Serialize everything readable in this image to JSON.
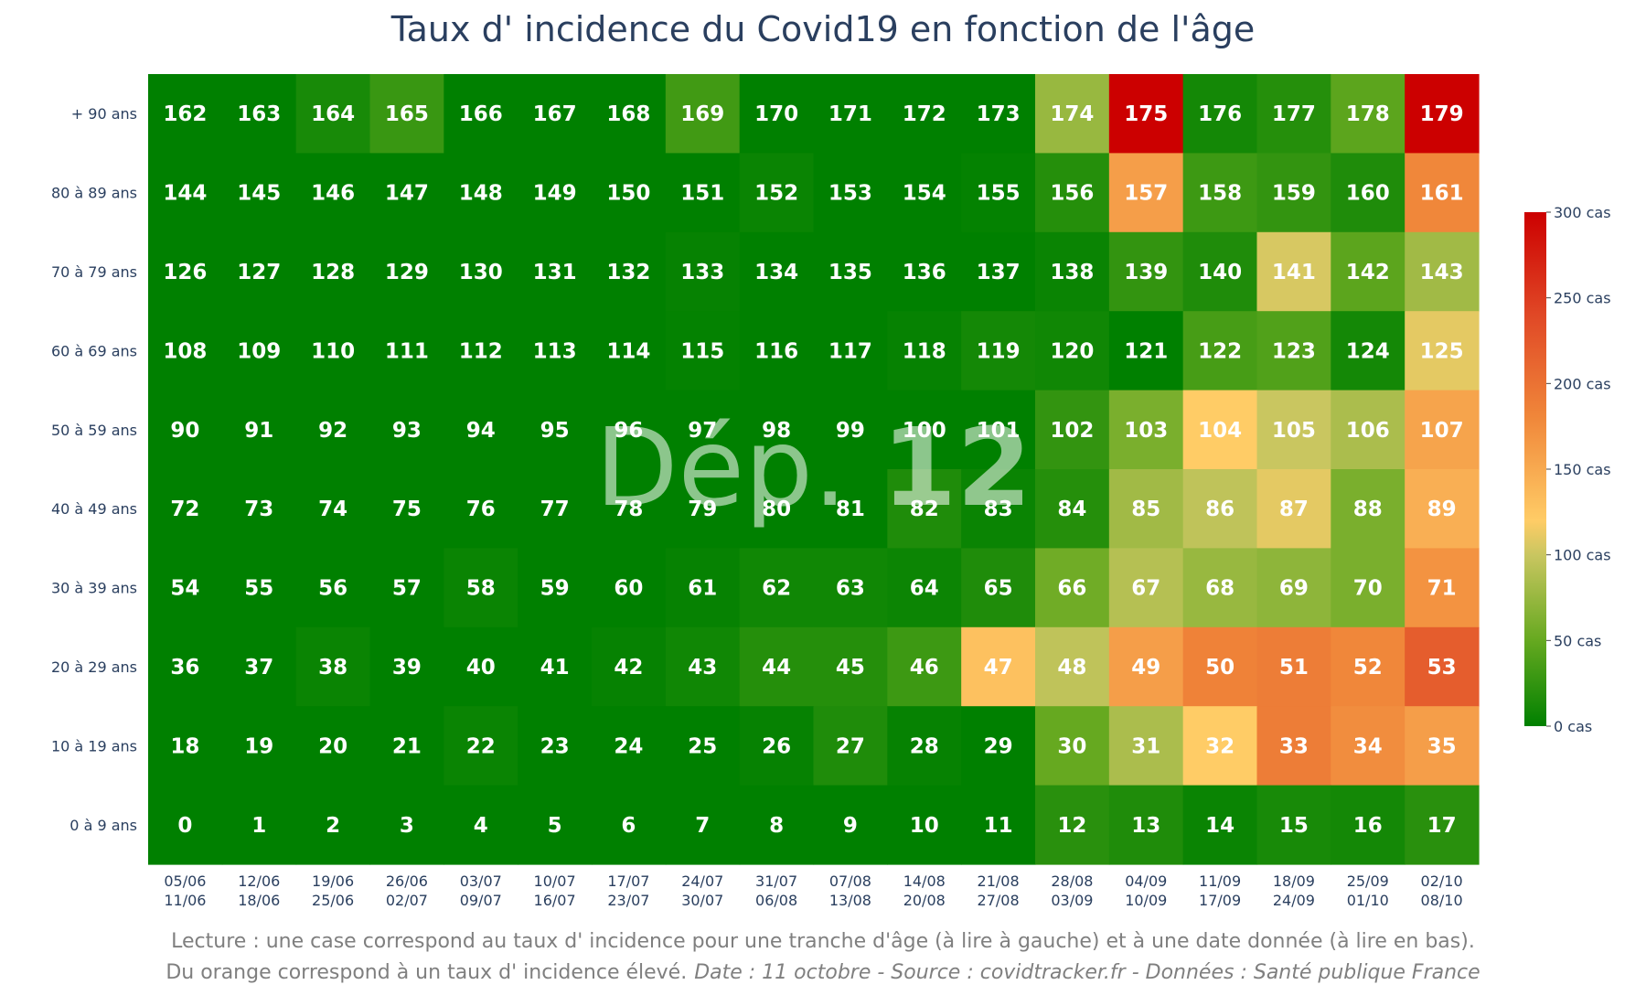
{
  "chart_data": {
    "type": "heatmap",
    "title": "Taux d' incidence du Covid19 en fonction de l'âge",
    "watermark": {
      "text": "Dép.",
      "number": "12"
    },
    "x_categories": [
      {
        "start": "05/06",
        "end": "11/06"
      },
      {
        "start": "12/06",
        "end": "18/06"
      },
      {
        "start": "19/06",
        "end": "25/06"
      },
      {
        "start": "26/06",
        "end": "02/07"
      },
      {
        "start": "03/07",
        "end": "09/07"
      },
      {
        "start": "10/07",
        "end": "16/07"
      },
      {
        "start": "17/07",
        "end": "23/07"
      },
      {
        "start": "24/07",
        "end": "30/07"
      },
      {
        "start": "31/07",
        "end": "06/08"
      },
      {
        "start": "07/08",
        "end": "13/08"
      },
      {
        "start": "14/08",
        "end": "20/08"
      },
      {
        "start": "21/08",
        "end": "27/08"
      },
      {
        "start": "28/08",
        "end": "03/09"
      },
      {
        "start": "04/09",
        "end": "10/09"
      },
      {
        "start": "11/09",
        "end": "17/09"
      },
      {
        "start": "18/09",
        "end": "24/09"
      },
      {
        "start": "25/09",
        "end": "01/10"
      },
      {
        "start": "02/10",
        "end": "08/10"
      }
    ],
    "y_categories": [
      "+ 90 ans",
      "80 à 89 ans",
      "70 à 79 ans",
      "60 à 69 ans",
      "50 à 59 ans",
      "40 à 49 ans",
      "30 à 39 ans",
      "20 à 29 ans",
      "10 à 19 ans",
      "0 à 9 ans"
    ],
    "cell_labels": [
      [
        "162",
        "163",
        "164",
        "165",
        "166",
        "167",
        "168",
        "169",
        "170",
        "171",
        "172",
        "173",
        "174",
        "175",
        "176",
        "177",
        "178",
        "179"
      ],
      [
        "144",
        "145",
        "146",
        "147",
        "148",
        "149",
        "150",
        "151",
        "152",
        "153",
        "154",
        "155",
        "156",
        "157",
        "158",
        "159",
        "160",
        "161"
      ],
      [
        "126",
        "127",
        "128",
        "129",
        "130",
        "131",
        "132",
        "133",
        "134",
        "135",
        "136",
        "137",
        "138",
        "139",
        "140",
        "141",
        "142",
        "143"
      ],
      [
        "108",
        "109",
        "110",
        "111",
        "112",
        "113",
        "114",
        "115",
        "116",
        "117",
        "118",
        "119",
        "120",
        "121",
        "122",
        "123",
        "124",
        "125"
      ],
      [
        "90",
        "91",
        "92",
        "93",
        "94",
        "95",
        "96",
        "97",
        "98",
        "99",
        "100",
        "101",
        "102",
        "103",
        "104",
        "105",
        "106",
        "107"
      ],
      [
        "72",
        "73",
        "74",
        "75",
        "76",
        "77",
        "78",
        "79",
        "80",
        "81",
        "82",
        "83",
        "84",
        "85",
        "86",
        "87",
        "88",
        "89"
      ],
      [
        "54",
        "55",
        "56",
        "57",
        "58",
        "59",
        "60",
        "61",
        "62",
        "63",
        "64",
        "65",
        "66",
        "67",
        "68",
        "69",
        "70",
        "71"
      ],
      [
        "36",
        "37",
        "38",
        "39",
        "40",
        "41",
        "42",
        "43",
        "44",
        "45",
        "46",
        "47",
        "48",
        "49",
        "50",
        "51",
        "52",
        "53"
      ],
      [
        "18",
        "19",
        "20",
        "21",
        "22",
        "23",
        "24",
        "25",
        "26",
        "27",
        "28",
        "29",
        "30",
        "31",
        "32",
        "33",
        "34",
        "35"
      ],
      [
        "0",
        "1",
        "2",
        "3",
        "4",
        "5",
        "6",
        "7",
        "8",
        "9",
        "10",
        "11",
        "12",
        "13",
        "14",
        "15",
        "16",
        "17"
      ]
    ],
    "values": [
      [
        0,
        0,
        12,
        28,
        0,
        0,
        0,
        32,
        0,
        0,
        0,
        0,
        75,
        300,
        10,
        18,
        45,
        300
      ],
      [
        0,
        0,
        0,
        0,
        0,
        0,
        0,
        0,
        5,
        0,
        0,
        2,
        18,
        160,
        30,
        25,
        15,
        180
      ],
      [
        0,
        0,
        0,
        0,
        0,
        0,
        0,
        3,
        0,
        0,
        0,
        0,
        5,
        25,
        15,
        105,
        45,
        80
      ],
      [
        0,
        0,
        0,
        0,
        0,
        0,
        0,
        2,
        0,
        0,
        3,
        10,
        8,
        0,
        35,
        40,
        10,
        110
      ],
      [
        0,
        0,
        0,
        0,
        0,
        0,
        0,
        0,
        0,
        0,
        0,
        0,
        25,
        60,
        120,
        100,
        85,
        155
      ],
      [
        0,
        0,
        0,
        0,
        0,
        0,
        0,
        0,
        0,
        0,
        15,
        5,
        18,
        80,
        95,
        110,
        60,
        145
      ],
      [
        0,
        0,
        0,
        0,
        5,
        0,
        0,
        3,
        8,
        8,
        6,
        15,
        55,
        90,
        75,
        70,
        60,
        170
      ],
      [
        0,
        0,
        5,
        0,
        0,
        0,
        3,
        8,
        18,
        18,
        30,
        130,
        95,
        160,
        185,
        190,
        180,
        220
      ],
      [
        0,
        0,
        0,
        0,
        5,
        0,
        0,
        0,
        3,
        15,
        3,
        0,
        50,
        85,
        120,
        190,
        175,
        160
      ],
      [
        0,
        0,
        0,
        0,
        0,
        0,
        0,
        0,
        0,
        0,
        0,
        0,
        20,
        15,
        5,
        12,
        10,
        20
      ]
    ],
    "colorscale": [
      [
        0,
        "#008000"
      ],
      [
        0.167,
        "#66a920"
      ],
      [
        0.333,
        "#c9c660"
      ],
      [
        0.4,
        "#ffcc66"
      ],
      [
        0.6,
        "#f0873a"
      ],
      [
        0.8,
        "#e04826"
      ],
      [
        1,
        "#cc0000"
      ]
    ],
    "zmin": 0,
    "zmax": 300,
    "colorbar": {
      "position": "right",
      "ticks": [
        {
          "value": 300,
          "label": "300 cas"
        },
        {
          "value": 250,
          "label": "250 cas"
        },
        {
          "value": 200,
          "label": "200 cas"
        },
        {
          "value": 150,
          "label": "150 cas"
        },
        {
          "value": 100,
          "label": "100 cas"
        },
        {
          "value": 50,
          "label": "50 cas"
        },
        {
          "value": 0,
          "label": "0 cas"
        }
      ]
    },
    "colors": {
      "title": "#2a3f5f",
      "axis_text": "#2a3f5f",
      "caption": "#7f7f7f",
      "cell_text": "#ffffff"
    }
  },
  "caption": {
    "line1": "Lecture : une case correspond au taux d' incidence pour une tranche d'âge (à lire à gauche) et à une date donnée (à lire en bas).",
    "line2_main": "Du orange correspond à un taux d' incidence élevé.",
    "line2_source": "Date : 11 octobre - Source : covidtracker.fr - Données : Santé publique France"
  }
}
